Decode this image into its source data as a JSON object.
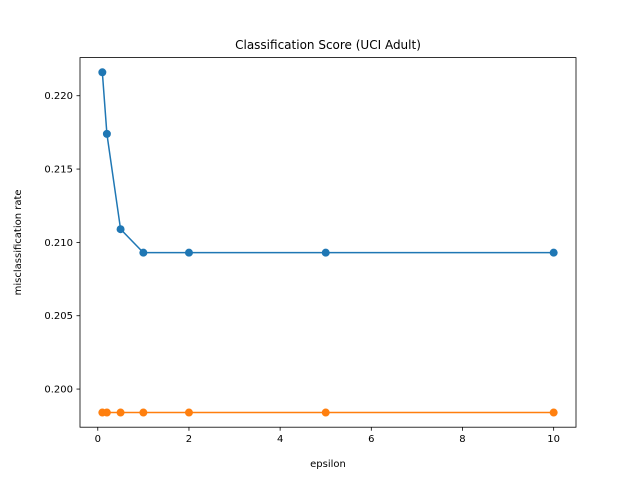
{
  "chart_data": {
    "type": "line",
    "title": "Classification Score (UCI Adult)",
    "xlabel": "epsilon",
    "ylabel": "misclassification rate",
    "xlim": [
      -0.39,
      10.49
    ],
    "ylim": [
      0.1974,
      0.2226
    ],
    "xticks": [
      0,
      2,
      4,
      6,
      8,
      10
    ],
    "xtick_labels": [
      "0",
      "2",
      "4",
      "6",
      "8",
      "10"
    ],
    "yticks": [
      0.2,
      0.205,
      0.21,
      0.215,
      0.22
    ],
    "ytick_labels": [
      "0.200",
      "0.205",
      "0.210",
      "0.215",
      "0.220"
    ],
    "grid": false,
    "legend": "none",
    "x": [
      0.1,
      0.2,
      0.5,
      1,
      2,
      5,
      10
    ],
    "series": [
      {
        "color": "#1f77b4",
        "marker": "circle",
        "values": [
          0.2216,
          0.2174,
          0.2109,
          0.2093,
          0.2093,
          0.2093,
          0.2093
        ]
      },
      {
        "color": "#ff7f0e",
        "marker": "circle",
        "values": [
          0.1984,
          0.1984,
          0.1984,
          0.1984,
          0.1984,
          0.1984,
          0.1984
        ]
      }
    ]
  }
}
